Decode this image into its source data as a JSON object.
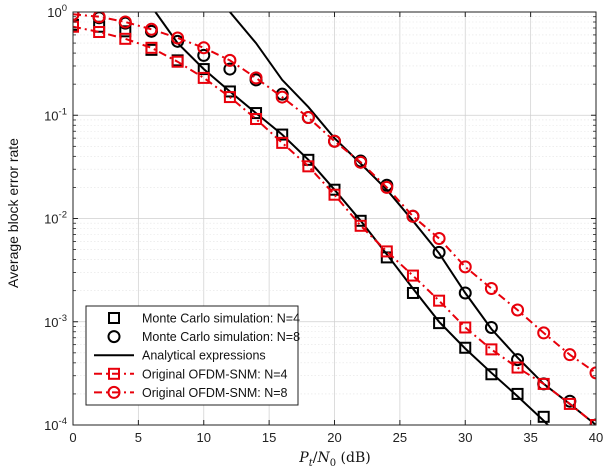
{
  "chart_data": {
    "type": "line",
    "title": "",
    "xlabel_math": {
      "P": "P",
      "t": "t",
      "slash": "/",
      "N": "N",
      "zero": "0",
      "unit": " (dB)"
    },
    "ylabel": "Average block error rate",
    "xlim": [
      0,
      40
    ],
    "ylim": [
      0.0001,
      1
    ],
    "yscale": "log",
    "grid": true,
    "legend_position": "bottom-left",
    "x_ticks": [
      "0",
      "5",
      "10",
      "15",
      "20",
      "25",
      "30",
      "35",
      "40"
    ],
    "y_ticks": [
      {
        "base": "10",
        "exp": "0"
      },
      {
        "base": "10",
        "exp": "-1"
      },
      {
        "base": "10",
        "exp": "-2"
      },
      {
        "base": "10",
        "exp": "-3"
      },
      {
        "base": "10",
        "exp": "-4"
      }
    ],
    "series": [
      {
        "name": "Monte Carlo simulation: N=4",
        "color": "#000000",
        "marker": "square",
        "line": "none",
        "x": [
          0,
          2,
          4,
          6,
          8,
          10,
          12,
          14,
          16,
          18,
          20,
          22,
          24,
          26,
          28,
          30,
          32,
          34,
          36,
          38
        ],
        "y": [
          0.75,
          0.72,
          0.65,
          0.43,
          0.34,
          0.28,
          0.17,
          0.105,
          0.065,
          0.037,
          0.019,
          0.0095,
          0.0042,
          0.0019,
          0.00097,
          0.00056,
          0.00031,
          0.0002,
          0.00012,
          7e-05
        ]
      },
      {
        "name": "Monte Carlo simulation: N=8",
        "color": "#000000",
        "marker": "circle",
        "line": "none",
        "x": [
          0,
          2,
          4,
          6,
          8,
          10,
          12,
          14,
          16,
          18,
          20,
          22,
          24,
          26,
          28,
          30,
          32,
          34,
          36,
          38,
          40
        ],
        "y": [
          0.95,
          0.88,
          0.78,
          0.65,
          0.52,
          0.38,
          0.28,
          0.22,
          0.16,
          0.095,
          0.056,
          0.036,
          0.021,
          0.0105,
          0.0047,
          0.0019,
          0.00088,
          0.00043,
          0.00025,
          0.00017,
          0.0001
        ]
      },
      {
        "name": "Analytical expressions",
        "color": "#000000",
        "marker": "none",
        "line": "solid",
        "segments": [
          {
            "x": [
              6.3,
              8,
              10,
              12,
              14,
              16,
              18,
              20,
              22,
              24,
              26,
              28,
              30,
              32,
              34,
              36,
              37.5
            ],
            "y": [
              1,
              0.5,
              0.28,
              0.17,
              0.105,
              0.065,
              0.037,
              0.019,
              0.0095,
              0.0045,
              0.0021,
              0.001,
              0.00055,
              0.00032,
              0.00019,
              0.00011,
              7e-05
            ]
          },
          {
            "x": [
              12,
              14,
              16,
              18,
              20,
              22,
              24,
              26,
              28,
              30,
              32,
              34,
              36,
              38,
              40
            ],
            "y": [
              1,
              0.5,
              0.22,
              0.12,
              0.06,
              0.034,
              0.019,
              0.0095,
              0.0046,
              0.0019,
              0.00085,
              0.00045,
              0.00025,
              0.00016,
              0.0001
            ]
          }
        ]
      },
      {
        "name": "Original OFDM-SNM: N=4",
        "color": "#e8000b",
        "marker": "square",
        "line": "dashdot",
        "x": [
          0,
          2,
          4,
          6,
          8,
          10,
          12,
          14,
          16,
          18,
          20,
          22,
          24,
          26,
          28,
          30,
          32,
          34,
          36,
          38,
          40
        ],
        "y": [
          0.72,
          0.64,
          0.55,
          0.45,
          0.33,
          0.23,
          0.15,
          0.092,
          0.054,
          0.032,
          0.017,
          0.0085,
          0.0048,
          0.0028,
          0.0016,
          0.00088,
          0.00054,
          0.00036,
          0.00025,
          0.00016,
          0.0001
        ]
      },
      {
        "name": "Original OFDM-SNM: N=8",
        "color": "#e8000b",
        "marker": "circle",
        "line": "dashdot",
        "x": [
          0,
          2,
          4,
          6,
          8,
          10,
          12,
          14,
          16,
          18,
          20,
          22,
          24,
          26,
          28,
          30,
          32,
          34,
          36,
          38,
          40
        ],
        "y": [
          0.95,
          0.9,
          0.8,
          0.68,
          0.56,
          0.45,
          0.34,
          0.23,
          0.15,
          0.095,
          0.056,
          0.035,
          0.02,
          0.0105,
          0.0064,
          0.0034,
          0.0021,
          0.0013,
          0.00078,
          0.00048,
          0.00032
        ]
      }
    ]
  }
}
